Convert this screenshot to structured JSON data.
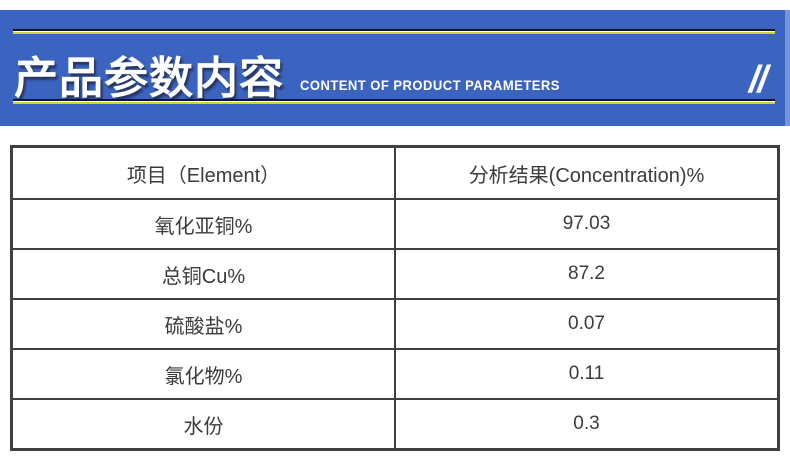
{
  "header": {
    "title": "产品参数内容",
    "subtitle": "CONTENT OF PRODUCT PARAMETERS",
    "slashes": "//",
    "colors": {
      "banner_blue": "#3b64c0",
      "edge_blue": "#7a93d8",
      "line_dark": "#15151d",
      "line_white": "#ffffff",
      "line_yellow": "#c6d839"
    }
  },
  "table": {
    "columns": [
      "项目（Element）",
      "分析结果(Concentration)%"
    ],
    "rows": [
      {
        "element": "氧化亚铜%",
        "concentration": "97.03"
      },
      {
        "element": "总铜Cu%",
        "concentration": "87.2"
      },
      {
        "element": "硫酸盐%",
        "concentration": "0.07"
      },
      {
        "element": "氯化物%",
        "concentration": "0.11"
      },
      {
        "element": "水份",
        "concentration": "0.3"
      }
    ]
  }
}
